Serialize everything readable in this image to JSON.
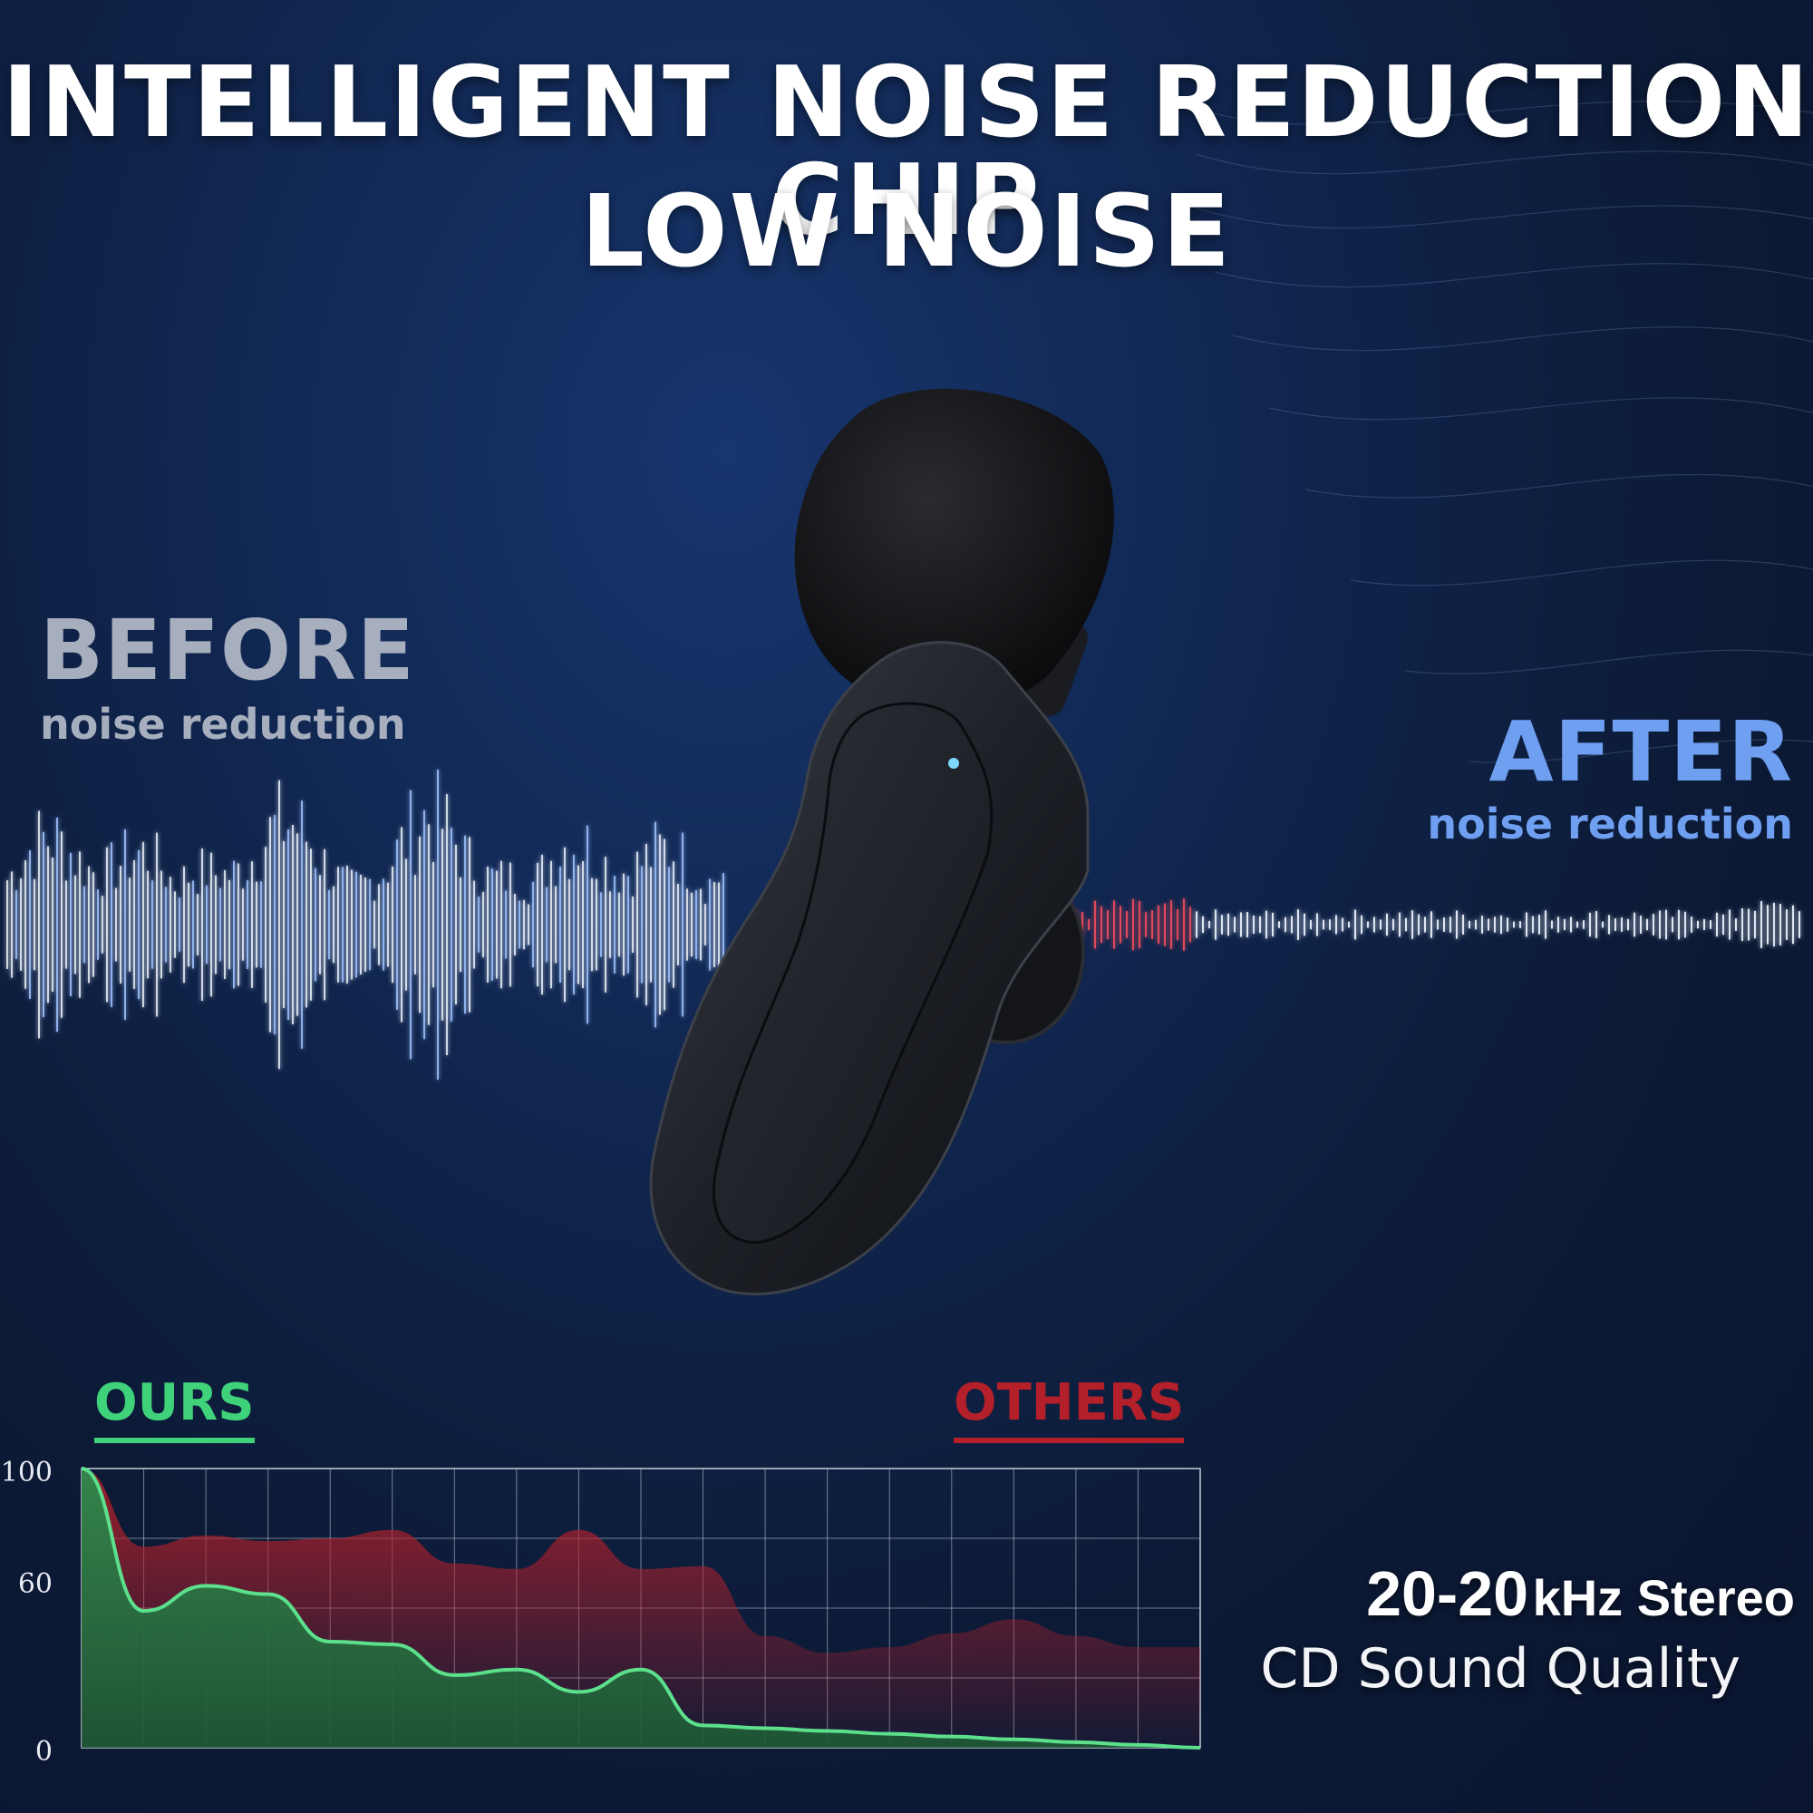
{
  "headline": {
    "line1": "INTELLIGENT NOISE REDUCTION CHIP",
    "line2": "LOW NOISE"
  },
  "before": {
    "title": "BEFORE",
    "subtitle": "noise reduction"
  },
  "after": {
    "title": "AFTER",
    "subtitle": "noise reduction"
  },
  "product": {
    "icon": "lavalier-microphone-icon",
    "indicator_color": "#7fd6ff"
  },
  "colors": {
    "ours": "#3fd27a",
    "others": "#b3202a",
    "after_accent": "#6f9ff0",
    "before_text": "#a7afbf"
  },
  "spec": {
    "range": "20-20",
    "unit": "kHz Stereo",
    "quality": "CD Sound Quality"
  },
  "chart_data": {
    "type": "area",
    "title": "",
    "xlabel": "",
    "ylabel": "",
    "ylim": [
      0,
      100
    ],
    "y_ticks": [
      "100",
      "60",
      "0"
    ],
    "legend": [
      "OURS",
      "OTHERS"
    ],
    "grid": true,
    "x": [
      0,
      1,
      2,
      3,
      4,
      5,
      6,
      7,
      8,
      9,
      10,
      11,
      12,
      13,
      14,
      15,
      16,
      17,
      18
    ],
    "series": [
      {
        "name": "OURS",
        "color": "#3fd27a",
        "values": [
          100,
          49,
          58,
          55,
          38,
          37,
          26,
          28,
          20,
          28,
          8,
          7,
          6,
          5,
          4,
          3,
          2,
          1,
          0
        ]
      },
      {
        "name": "OTHERS",
        "color": "#b3202a",
        "values": [
          100,
          72,
          76,
          74,
          75,
          78,
          66,
          64,
          78,
          64,
          65,
          40,
          34,
          36,
          41,
          46,
          40,
          36,
          36
        ]
      }
    ]
  }
}
